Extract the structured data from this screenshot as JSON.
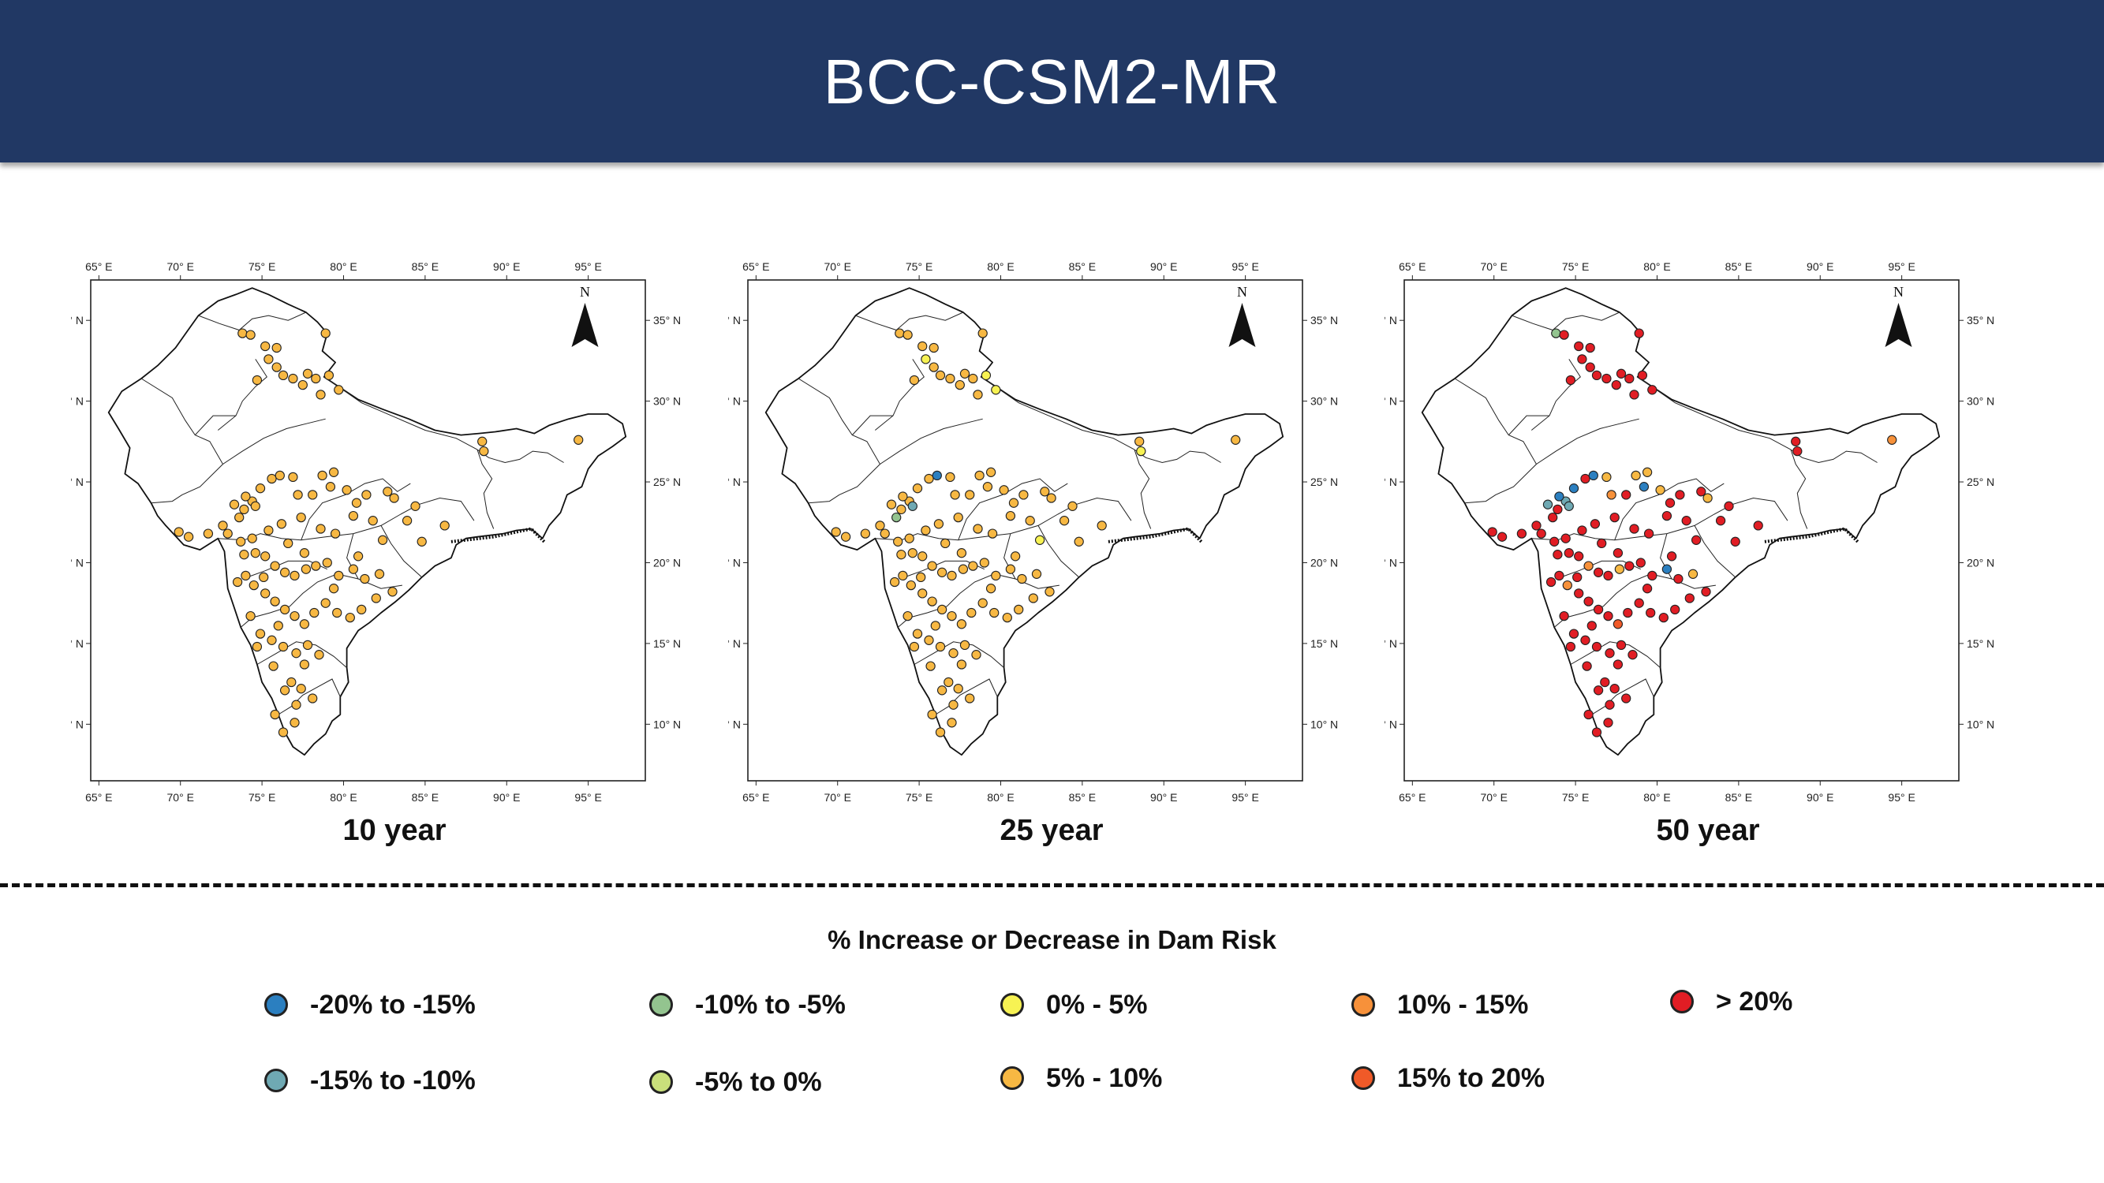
{
  "title": "BCC-CSM2-MR",
  "axes": {
    "x_ticks": [
      "65° E",
      "70° E",
      "75° E",
      "80° E",
      "85° E",
      "90° E",
      "95° E"
    ],
    "y_ticks": [
      "35° N",
      "30° N",
      "25° N",
      "20° N",
      "15° N",
      "10° N"
    ],
    "north_label": "N"
  },
  "panels": [
    {
      "label": "10 year"
    },
    {
      "label": "25 year"
    },
    {
      "label": "50 year"
    }
  ],
  "legend": {
    "title": "% Increase or Decrease in Dam Risk",
    "items": [
      {
        "label": "-20% to -15%",
        "color": "#2b7fc0"
      },
      {
        "label": "-10% to -5%",
        "color": "#93c48f"
      },
      {
        "label": "0% - 5%",
        "color": "#f7f253"
      },
      {
        "label": "10% - 15%",
        "color": "#f7913a"
      },
      {
        "label": "> 20%",
        "color": "#e11d24"
      },
      {
        "label": "-15% to -10%",
        "color": "#6fa9b3"
      },
      {
        "label": "-5% to 0%",
        "color": "#c9df7b"
      },
      {
        "label": "5% - 10%",
        "color": "#f7b843"
      },
      {
        "label": "15% to 20%",
        "color": "#f05a28"
      }
    ]
  },
  "chart_data": {
    "type": "scatter",
    "xlim": [
      64.5,
      98.5
    ],
    "ylim": [
      6.5,
      37.5
    ],
    "dams": [
      [
        73.8,
        34.2
      ],
      [
        74.3,
        34.1
      ],
      [
        75.2,
        33.4
      ],
      [
        75.9,
        33.3
      ],
      [
        75.4,
        32.6
      ],
      [
        75.9,
        32.1
      ],
      [
        74.7,
        31.3
      ],
      [
        76.3,
        31.6
      ],
      [
        76.9,
        31.4
      ],
      [
        77.8,
        31.7
      ],
      [
        78.3,
        31.4
      ],
      [
        79.1,
        31.6
      ],
      [
        77.5,
        31.0
      ],
      [
        78.6,
        30.4
      ],
      [
        79.7,
        30.7
      ],
      [
        78.9,
        34.2
      ],
      [
        88.5,
        27.5
      ],
      [
        88.6,
        26.9
      ],
      [
        94.4,
        27.6
      ],
      [
        74.4,
        23.8
      ],
      [
        74.0,
        24.1
      ],
      [
        73.9,
        23.3
      ],
      [
        74.6,
        23.5
      ],
      [
        73.6,
        22.8
      ],
      [
        74.9,
        24.6
      ],
      [
        75.6,
        25.2
      ],
      [
        76.1,
        25.4
      ],
      [
        77.2,
        24.2
      ],
      [
        78.7,
        25.4
      ],
      [
        79.4,
        25.6
      ],
      [
        79.2,
        24.7
      ],
      [
        80.2,
        24.5
      ],
      [
        80.8,
        23.7
      ],
      [
        81.4,
        24.2
      ],
      [
        82.7,
        24.4
      ],
      [
        83.1,
        24.0
      ],
      [
        83.9,
        22.6
      ],
      [
        84.8,
        21.3
      ],
      [
        86.2,
        22.3
      ],
      [
        84.4,
        23.5
      ],
      [
        81.8,
        22.6
      ],
      [
        80.6,
        22.9
      ],
      [
        79.5,
        21.8
      ],
      [
        78.6,
        22.1
      ],
      [
        77.4,
        22.8
      ],
      [
        76.2,
        22.4
      ],
      [
        75.4,
        22.0
      ],
      [
        74.4,
        21.5
      ],
      [
        73.7,
        21.3
      ],
      [
        72.9,
        21.8
      ],
      [
        71.7,
        21.8
      ],
      [
        70.5,
        21.6
      ],
      [
        69.9,
        21.9
      ],
      [
        72.6,
        22.3
      ],
      [
        73.9,
        20.5
      ],
      [
        74.6,
        20.6
      ],
      [
        75.2,
        20.4
      ],
      [
        75.8,
        19.8
      ],
      [
        76.4,
        19.4
      ],
      [
        77.0,
        19.2
      ],
      [
        77.7,
        19.6
      ],
      [
        78.3,
        19.8
      ],
      [
        79.0,
        20.0
      ],
      [
        79.7,
        19.2
      ],
      [
        80.6,
        19.6
      ],
      [
        81.3,
        19.0
      ],
      [
        82.2,
        19.3
      ],
      [
        83.0,
        18.2
      ],
      [
        82.0,
        17.8
      ],
      [
        81.1,
        17.1
      ],
      [
        80.4,
        16.6
      ],
      [
        79.6,
        16.9
      ],
      [
        78.9,
        17.5
      ],
      [
        78.2,
        16.9
      ],
      [
        77.6,
        16.2
      ],
      [
        77.0,
        16.7
      ],
      [
        76.4,
        17.1
      ],
      [
        75.8,
        17.6
      ],
      [
        75.2,
        18.1
      ],
      [
        74.5,
        18.6
      ],
      [
        74.0,
        19.2
      ],
      [
        73.5,
        18.8
      ],
      [
        74.3,
        16.7
      ],
      [
        74.9,
        15.6
      ],
      [
        75.6,
        15.2
      ],
      [
        76.3,
        14.8
      ],
      [
        77.1,
        14.4
      ],
      [
        77.8,
        14.9
      ],
      [
        78.5,
        14.3
      ],
      [
        77.6,
        13.7
      ],
      [
        76.8,
        12.6
      ],
      [
        77.4,
        12.2
      ],
      [
        78.1,
        11.6
      ],
      [
        77.1,
        11.2
      ],
      [
        76.4,
        12.1
      ],
      [
        75.7,
        13.6
      ],
      [
        74.7,
        14.8
      ],
      [
        75.8,
        10.6
      ],
      [
        77.0,
        10.1
      ],
      [
        76.3,
        9.5
      ],
      [
        77.6,
        20.6
      ],
      [
        76.6,
        21.2
      ],
      [
        75.1,
        19.1
      ],
      [
        79.4,
        18.4
      ],
      [
        80.9,
        20.4
      ],
      [
        78.1,
        24.2
      ],
      [
        76.9,
        25.3
      ],
      [
        82.4,
        21.4
      ],
      [
        73.3,
        23.6
      ],
      [
        76.0,
        16.1
      ]
    ],
    "series": [
      {
        "colors": "#f7b843"
      },
      {
        "colors": "#f7b843",
        "overrides": {
          "22": "#6fa9b3",
          "23": "#93c48f",
          "26": "#2b7fc0",
          "14": "#f7f253",
          "11": "#f7f253",
          "4": "#f7f253",
          "17": "#f7f253",
          "107": "#f7f253"
        }
      },
      {
        "colors": "#e11d24",
        "overrides": {
          "0": "#93c48f",
          "19": "#6fa9b3",
          "20": "#2b7fc0",
          "22": "#6fa9b3",
          "26": "#2b7fc0",
          "24": "#2b7fc0",
          "30": "#2b7fc0",
          "28": "#f7b843",
          "27": "#f7913a",
          "35": "#f7b843",
          "18": "#f7913a",
          "64": "#2b7fc0",
          "66": "#f7b843",
          "57": "#f7913a",
          "60": "#f7b843",
          "74": "#f05a28",
          "79": "#f7913a",
          "108": "#6fa9b3",
          "106": "#f7b843",
          "31": "#f7b843",
          "29": "#f7b843"
        }
      }
    ]
  }
}
